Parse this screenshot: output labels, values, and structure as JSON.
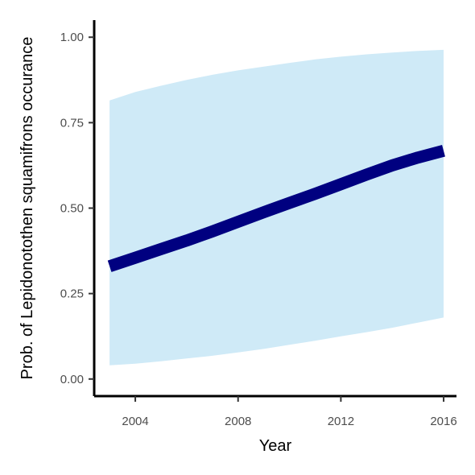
{
  "chart_data": {
    "type": "line",
    "xlabel": "Year",
    "ylabel": "Prob. of  Lepidonotothen squamifrons  occurance",
    "xlim": [
      2002.4,
      2016.5
    ],
    "ylim": [
      -0.05,
      1.05
    ],
    "x_ticks": [
      2004,
      2008,
      2012,
      2016
    ],
    "x_tick_labels": [
      "2004",
      "2008",
      "2012",
      "2016"
    ],
    "y_ticks": [
      0.0,
      0.25,
      0.5,
      0.75,
      1.0
    ],
    "y_tick_labels": [
      "0.00",
      "0.25",
      "0.50",
      "0.75",
      "1.00"
    ],
    "grid": false,
    "legend": "none",
    "series": [
      {
        "x": [
          2003,
          2004,
          2005,
          2006,
          2007,
          2008,
          2009,
          2010,
          2011,
          2012,
          2013,
          2014,
          2015,
          2016
        ],
        "y": [
          0.33,
          0.355,
          0.38,
          0.405,
          0.432,
          0.46,
          0.488,
          0.515,
          0.542,
          0.57,
          0.598,
          0.625,
          0.648,
          0.668
        ],
        "lower": [
          0.04,
          0.045,
          0.052,
          0.06,
          0.068,
          0.078,
          0.088,
          0.1,
          0.112,
          0.125,
          0.137,
          0.15,
          0.165,
          0.18
        ],
        "upper": [
          0.815,
          0.84,
          0.858,
          0.875,
          0.89,
          0.903,
          0.914,
          0.925,
          0.935,
          0.943,
          0.95,
          0.955,
          0.96,
          0.963
        ],
        "color": "#000080",
        "band_color": "#cfeaf7"
      }
    ]
  }
}
